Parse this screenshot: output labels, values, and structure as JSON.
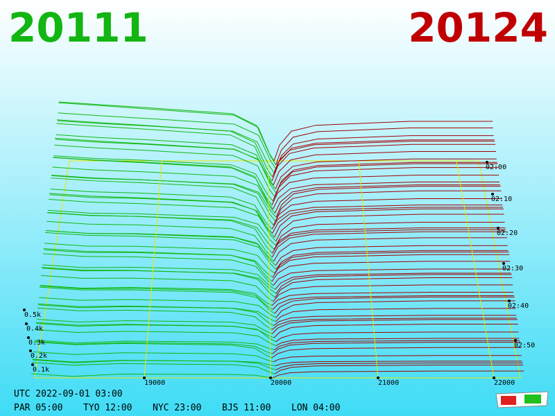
{
  "header": {
    "bid": "20111",
    "ask": "20124"
  },
  "depth_labels": [
    "0.5k",
    "0.4k",
    "0.3k",
    "0.2k",
    "0.1k"
  ],
  "price_labels": [
    "19000",
    "20000",
    "21000",
    "22000"
  ],
  "time_labels": [
    "02:00",
    "02:10",
    "02:20",
    "02:30",
    "02:40",
    "02:50"
  ],
  "footer": {
    "utc": "UTC 2022-09-01 03:00",
    "clocks": [
      "PAR 05:00",
      "TYO 12:00",
      "NYC 23:00",
      "BJS 11:00",
      "LON 04:00"
    ]
  }
}
